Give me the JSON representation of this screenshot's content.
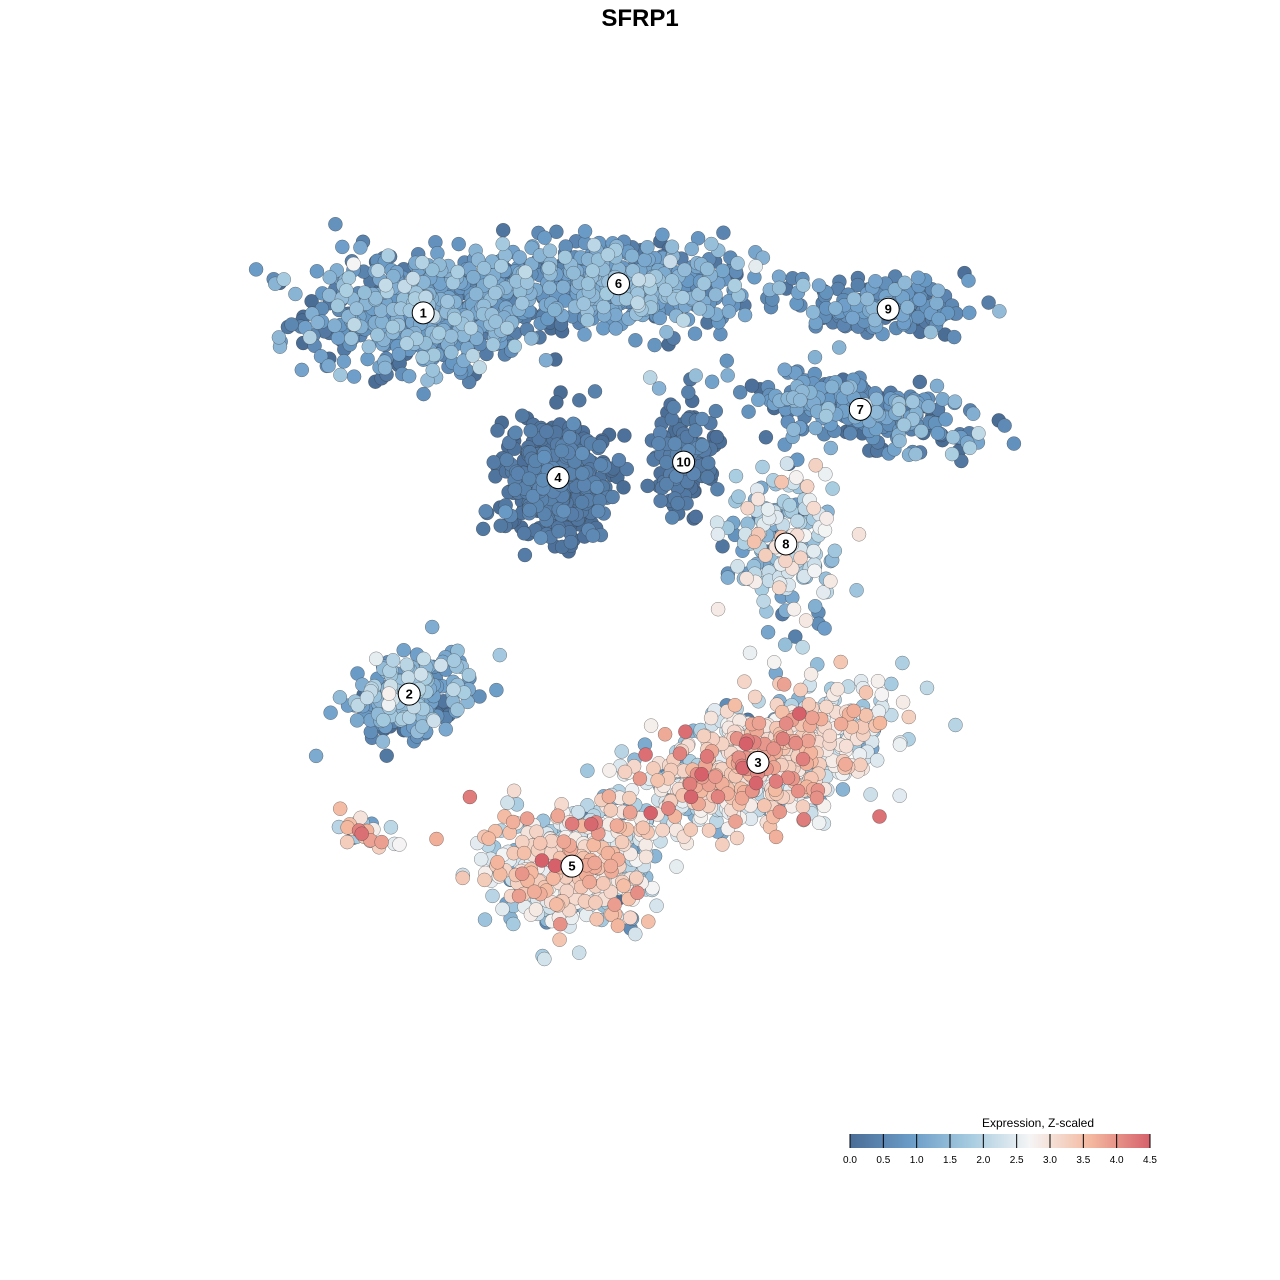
{
  "chart_data": {
    "type": "scatter",
    "title": "SFRP1",
    "xlabel": "",
    "ylabel": "",
    "axes_visible": false,
    "grid": false,
    "legend": {
      "title": "Expression, Z-scaled",
      "placement": "bottom-right",
      "ticks": [
        "0.0",
        "0.5",
        "1.0",
        "1.5",
        "2.0",
        "2.5",
        "3.0",
        "3.5",
        "4.0",
        "4.5"
      ],
      "range": [
        0,
        4.5
      ],
      "colors": [
        "#4a6d96",
        "#6a9bc7",
        "#a6cbe0",
        "#f5f5f5",
        "#f4b9a0",
        "#d6616b"
      ]
    },
    "xlim": [
      0,
      100
    ],
    "ylim": [
      0,
      100
    ],
    "clusters": [
      {
        "label": "1",
        "x": 24,
        "y": 85.4,
        "sx": 12.5,
        "sy": 6.5,
        "n": 620,
        "mean": 0.8,
        "sd": 0.55,
        "rot": 0
      },
      {
        "label": "6",
        "x": 45,
        "y": 88.6,
        "sx": 15,
        "sy": 4.5,
        "n": 560,
        "mean": 0.9,
        "sd": 0.5,
        "rot": 0
      },
      {
        "label": "4",
        "x": 38.5,
        "y": 67.3,
        "sx": 6,
        "sy": 6.5,
        "n": 460,
        "mean": 0.15,
        "sd": 0.2,
        "rot": 0
      },
      {
        "label": "10",
        "x": 52,
        "y": 69,
        "sx": 3.5,
        "sy": 6,
        "n": 150,
        "mean": 0.15,
        "sd": 0.2,
        "rot": 0
      },
      {
        "label": "9",
        "x": 74,
        "y": 85.8,
        "sx": 9,
        "sy": 2.8,
        "n": 170,
        "mean": 0.6,
        "sd": 0.45,
        "rot": 0
      },
      {
        "label": "7",
        "x": 71,
        "y": 74.8,
        "sx": 13,
        "sy": 3.2,
        "n": 260,
        "mean": 0.7,
        "sd": 0.5,
        "rot": -10
      },
      {
        "label": "8",
        "x": 63,
        "y": 60,
        "sx": 6,
        "sy": 9,
        "n": 190,
        "mean": 1.8,
        "sd": 0.8,
        "rot": 0
      },
      {
        "label": "2",
        "x": 22.5,
        "y": 43.5,
        "sx": 6.5,
        "sy": 4,
        "n": 240,
        "mean": 1.0,
        "sd": 0.6,
        "rot": 20
      },
      {
        "label": "3",
        "x": 60,
        "y": 36,
        "sx": 14,
        "sy": 6,
        "n": 850,
        "mean": 2.6,
        "sd": 0.8,
        "rot": 18
      },
      {
        "label": "5",
        "x": 40,
        "y": 24.6,
        "sx": 8.5,
        "sy": 6.5,
        "n": 560,
        "mean": 2.4,
        "sd": 0.85,
        "rot": 0
      },
      {
        "label": "",
        "x": 18,
        "y": 28.3,
        "sx": 4,
        "sy": 1.6,
        "n": 30,
        "mean": 2.5,
        "sd": 1.0,
        "rot": -10
      }
    ]
  }
}
